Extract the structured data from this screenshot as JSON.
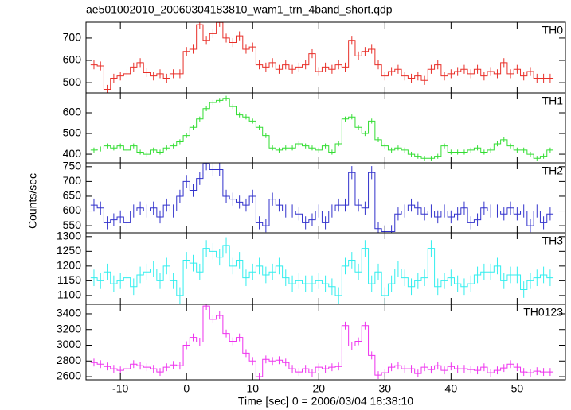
{
  "chart_data": [
    {
      "type": "step",
      "title": "ae501002010_20060304183810_wam1_trn_4band_short.qdp",
      "label": "TH0",
      "color": "#e8302a",
      "error": 20,
      "x": [
        -14,
        -13,
        -12,
        -11,
        -10,
        -9,
        -8,
        -7,
        -6,
        -5,
        -4,
        -3,
        -2,
        -1,
        0,
        1,
        2,
        3,
        4,
        5,
        6,
        7,
        8,
        9,
        10,
        11,
        12,
        13,
        14,
        15,
        16,
        17,
        18,
        19,
        20,
        21,
        22,
        23,
        24,
        25,
        26,
        27,
        28,
        29,
        30,
        31,
        32,
        33,
        34,
        35,
        36,
        37,
        38,
        39,
        40,
        41,
        42,
        43,
        44,
        45,
        46,
        47,
        48,
        49,
        50,
        51,
        52,
        53,
        54,
        55
      ],
      "values": [
        580,
        575,
        470,
        520,
        530,
        540,
        570,
        590,
        545,
        530,
        540,
        520,
        540,
        540,
        640,
        650,
        760,
        690,
        720,
        770,
        700,
        680,
        710,
        650,
        660,
        580,
        570,
        590,
        560,
        580,
        560,
        570,
        580,
        630,
        550,
        570,
        560,
        580,
        570,
        690,
        620,
        640,
        650,
        580,
        530,
        550,
        560,
        530,
        520,
        530,
        510,
        560,
        580,
        530,
        540,
        550,
        560,
        540,
        560,
        530,
        550,
        540,
        590,
        540,
        560,
        530,
        550,
        520,
        520,
        520
      ],
      "ylim": [
        454,
        771
      ],
      "yticks": [
        500,
        600,
        700
      ]
    },
    {
      "type": "step",
      "label": "TH1",
      "color": "#33dd33",
      "error": 12,
      "x": [
        -14,
        -13,
        -12,
        -11,
        -10,
        -9,
        -8,
        -7,
        -6,
        -5,
        -4,
        -3,
        -2,
        -1,
        0,
        1,
        2,
        3,
        4,
        5,
        6,
        7,
        8,
        9,
        10,
        11,
        12,
        13,
        14,
        15,
        16,
        17,
        18,
        19,
        20,
        21,
        22,
        23,
        24,
        25,
        26,
        27,
        28,
        29,
        30,
        31,
        32,
        33,
        34,
        35,
        36,
        37,
        38,
        39,
        40,
        41,
        42,
        43,
        44,
        45,
        46,
        47,
        48,
        49,
        50,
        51,
        52,
        53,
        54,
        55
      ],
      "values": [
        420,
        425,
        440,
        430,
        440,
        420,
        440,
        410,
        400,
        420,
        410,
        430,
        440,
        460,
        490,
        530,
        570,
        620,
        650,
        660,
        670,
        630,
        590,
        580,
        560,
        530,
        490,
        430,
        420,
        430,
        430,
        450,
        440,
        430,
        420,
        440,
        410,
        450,
        570,
        580,
        530,
        500,
        560,
        470,
        440,
        420,
        430,
        420,
        400,
        390,
        380,
        380,
        390,
        440,
        410,
        410,
        410,
        420,
        430,
        410,
        420,
        450,
        470,
        440,
        420,
        420,
        400,
        380,
        390,
        420
      ],
      "ylim": [
        358,
        696
      ],
      "yticks": [
        400,
        500,
        600
      ]
    },
    {
      "type": "step",
      "label": "TH2",
      "color": "#3333cc",
      "error": 22,
      "ylabel": "Counts/sec",
      "x": [
        -14,
        -13,
        -12,
        -11,
        -10,
        -9,
        -8,
        -7,
        -6,
        -5,
        -4,
        -3,
        -2,
        -1,
        0,
        1,
        2,
        3,
        4,
        5,
        6,
        7,
        8,
        9,
        10,
        11,
        12,
        13,
        14,
        15,
        16,
        17,
        18,
        19,
        20,
        21,
        22,
        23,
        24,
        25,
        26,
        27,
        28,
        29,
        30,
        31,
        32,
        33,
        34,
        35,
        36,
        37,
        38,
        39,
        40,
        41,
        42,
        43,
        44,
        45,
        46,
        47,
        48,
        49,
        50,
        51,
        52,
        53,
        54,
        55
      ],
      "values": [
        620,
        610,
        560,
        570,
        580,
        560,
        600,
        610,
        600,
        610,
        580,
        620,
        600,
        650,
        700,
        670,
        710,
        760,
        740,
        740,
        650,
        640,
        630,
        620,
        650,
        560,
        550,
        640,
        620,
        600,
        600,
        590,
        560,
        570,
        600,
        560,
        600,
        620,
        620,
        730,
        620,
        610,
        730,
        540,
        530,
        530,
        590,
        600,
        620,
        610,
        590,
        600,
        580,
        600,
        580,
        590,
        610,
        560,
        570,
        610,
        600,
        600,
        590,
        610,
        590,
        600,
        550,
        600,
        560,
        590
      ],
      "ylim": [
        526,
        763
      ],
      "yticks": [
        550,
        600,
        650,
        700,
        750
      ]
    },
    {
      "type": "step",
      "label": "TH3",
      "color": "#33eeee",
      "error": 28,
      "x": [
        -14,
        -13,
        -12,
        -11,
        -10,
        -9,
        -8,
        -7,
        -6,
        -5,
        -4,
        -3,
        -2,
        -1,
        0,
        1,
        2,
        3,
        4,
        5,
        6,
        7,
        8,
        9,
        10,
        11,
        12,
        13,
        14,
        15,
        16,
        17,
        18,
        19,
        20,
        21,
        22,
        23,
        24,
        25,
        26,
        27,
        28,
        29,
        30,
        31,
        32,
        33,
        34,
        35,
        36,
        37,
        38,
        39,
        40,
        41,
        42,
        43,
        44,
        45,
        46,
        47,
        48,
        49,
        50,
        51,
        52,
        53,
        54,
        55
      ],
      "values": [
        1160,
        1150,
        1180,
        1140,
        1150,
        1160,
        1130,
        1170,
        1180,
        1190,
        1150,
        1200,
        1150,
        1100,
        1220,
        1210,
        1180,
        1260,
        1250,
        1230,
        1270,
        1200,
        1220,
        1160,
        1180,
        1200,
        1170,
        1180,
        1200,
        1160,
        1140,
        1150,
        1140,
        1140,
        1150,
        1140,
        1130,
        1100,
        1200,
        1220,
        1180,
        1260,
        1140,
        1180,
        1100,
        1140,
        1190,
        1160,
        1130,
        1150,
        1160,
        1260,
        1130,
        1150,
        1160,
        1140,
        1130,
        1140,
        1170,
        1180,
        1180,
        1200,
        1150,
        1170,
        1170,
        1120,
        1150,
        1160,
        1170,
        1160
      ],
      "ylim": [
        1070,
        1313
      ],
      "yticks": [
        1100,
        1150,
        1200,
        1250,
        1300
      ]
    },
    {
      "type": "step",
      "label": "TH0123",
      "color": "#ee33ee",
      "error": 50,
      "xlabel": "Time [sec] 0 = 2006/03/04 18:38:10",
      "x": [
        -14,
        -13,
        -12,
        -11,
        -10,
        -9,
        -8,
        -7,
        -6,
        -5,
        -4,
        -3,
        -2,
        -1,
        0,
        1,
        2,
        3,
        4,
        5,
        6,
        7,
        8,
        9,
        10,
        11,
        12,
        13,
        14,
        15,
        16,
        17,
        18,
        19,
        20,
        21,
        22,
        23,
        24,
        25,
        26,
        27,
        28,
        29,
        30,
        31,
        32,
        33,
        34,
        35,
        36,
        37,
        38,
        39,
        40,
        41,
        42,
        43,
        44,
        45,
        46,
        47,
        48,
        49,
        50,
        51,
        52,
        53,
        54,
        55
      ],
      "values": [
        2780,
        2760,
        2730,
        2700,
        2680,
        2700,
        2760,
        2740,
        2720,
        2700,
        2660,
        2720,
        2750,
        2740,
        3000,
        3100,
        3040,
        3500,
        3330,
        3380,
        3150,
        3050,
        3100,
        2900,
        2800,
        2600,
        2820,
        2800,
        2810,
        2780,
        2700,
        2660,
        2700,
        2650,
        2720,
        2700,
        2720,
        2730,
        3250,
        2990,
        3050,
        3250,
        2870,
        2620,
        2650,
        2720,
        2740,
        2700,
        2700,
        2640,
        2720,
        2690,
        2740,
        2680,
        2730,
        2700,
        2700,
        2690,
        2680,
        2720,
        2650,
        2680,
        2710,
        2760,
        2720,
        2660,
        2650,
        2670,
        2660,
        2660
      ],
      "ylim": [
        2560,
        3521
      ],
      "yticks": [
        2600,
        2800,
        3000,
        3200,
        3400
      ],
      "xlim": [
        -15.2,
        57.3
      ],
      "xticks": [
        -10,
        0,
        10,
        20,
        30,
        40,
        50
      ]
    }
  ]
}
